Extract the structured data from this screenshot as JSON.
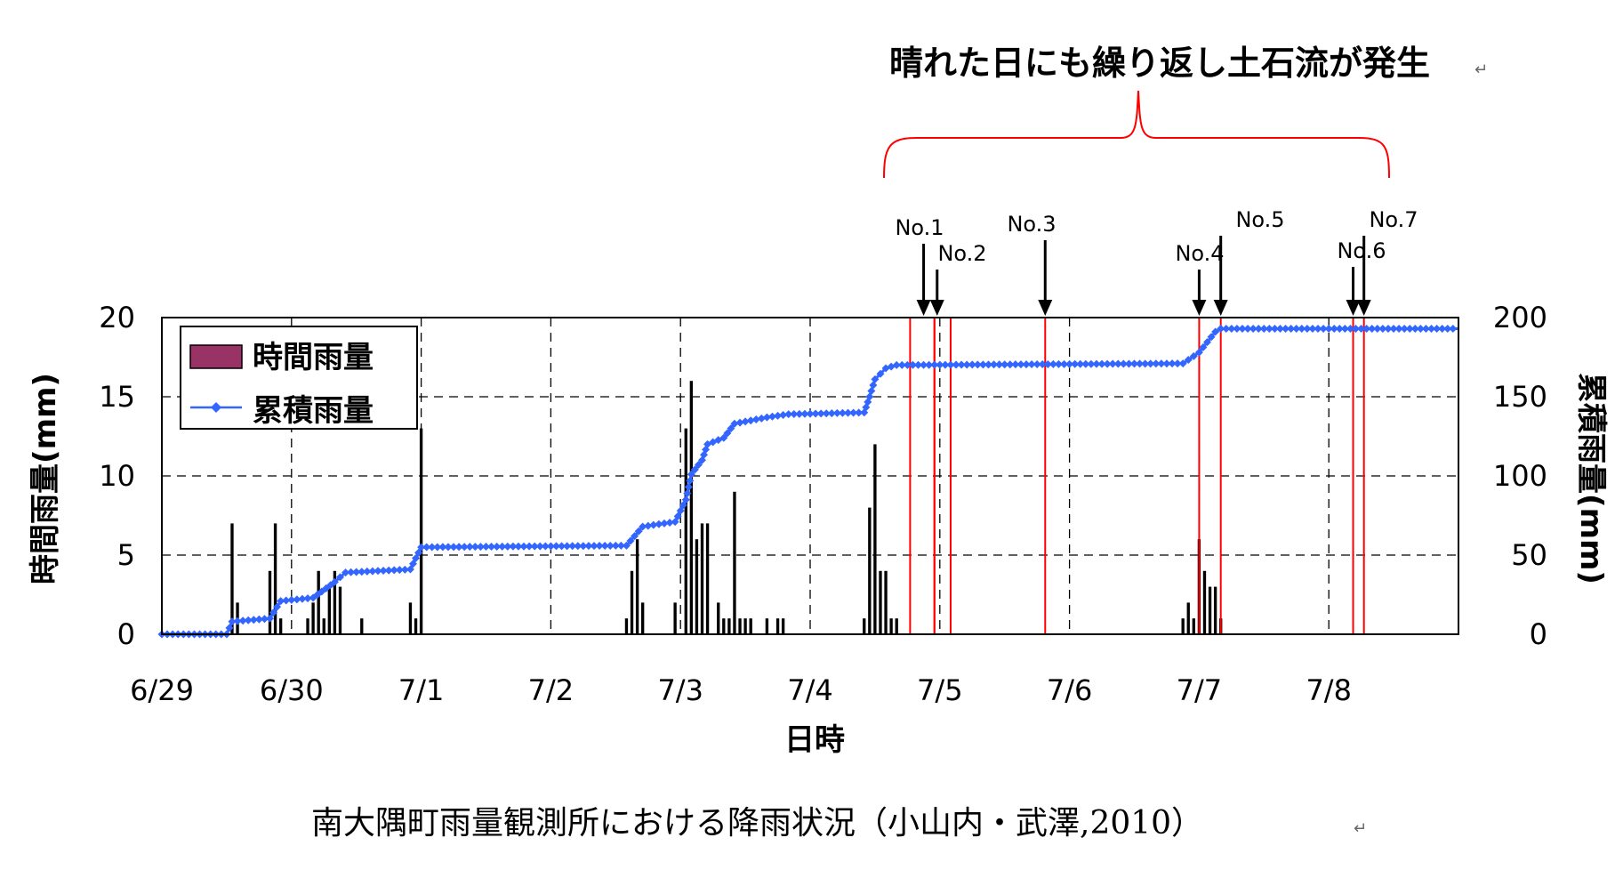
{
  "headline": "晴れた日にも繰り返し土石流が発生",
  "caption": "南大隅町雨量観測所における降雨状況（小山内・武澤,2010）",
  "return_mark": "↵",
  "colors": {
    "bars": "#000000",
    "legend_bar": "#993366",
    "cumulative": "#3366ff",
    "event": "#ff0000",
    "brace": "#ff0000",
    "grid": "#000000"
  },
  "chart_data": {
    "type": "bar+line",
    "xlabel": "日時",
    "ylabel_left": "時間雨量(mm)",
    "ylabel_right": "累積雨量(mm)",
    "ylim_left": [
      0,
      20
    ],
    "ylim_right": [
      0,
      200
    ],
    "yticks_left": [
      "0",
      "5",
      "10",
      "15",
      "20"
    ],
    "yticks_right": [
      "0",
      "50",
      "100",
      "150",
      "200"
    ],
    "xlim_days": [
      0,
      10
    ],
    "x_categories": [
      "6/29",
      "6/30",
      "7/1",
      "7/2",
      "7/3",
      "7/4",
      "7/5",
      "7/6",
      "7/7",
      "7/8"
    ],
    "grid": true,
    "legend_position": "top-left",
    "legend": [
      "時間雨量",
      "累積雨量"
    ],
    "hourly_rainfall": [
      {
        "t": "6/29 13:00",
        "v": 7
      },
      {
        "t": "6/29 14:00",
        "v": 2
      },
      {
        "t": "6/29 20:00",
        "v": 4
      },
      {
        "t": "6/29 21:00",
        "v": 7
      },
      {
        "t": "6/29 22:00",
        "v": 1
      },
      {
        "t": "6/30 03:00",
        "v": 1
      },
      {
        "t": "6/30 04:00",
        "v": 2
      },
      {
        "t": "6/30 05:00",
        "v": 4
      },
      {
        "t": "6/30 06:00",
        "v": 1
      },
      {
        "t": "6/30 07:00",
        "v": 3
      },
      {
        "t": "6/30 08:00",
        "v": 4
      },
      {
        "t": "6/30 09:00",
        "v": 3
      },
      {
        "t": "6/30 13:00",
        "v": 1
      },
      {
        "t": "6/30 22:00",
        "v": 2
      },
      {
        "t": "6/30 23:00",
        "v": 1
      },
      {
        "t": "7/1 00:00",
        "v": 13
      },
      {
        "t": "7/2 14:00",
        "v": 1
      },
      {
        "t": "7/2 15:00",
        "v": 4
      },
      {
        "t": "7/2 16:00",
        "v": 6
      },
      {
        "t": "7/2 17:00",
        "v": 2
      },
      {
        "t": "7/2 23:00",
        "v": 2
      },
      {
        "t": "7/3 01:00",
        "v": 13
      },
      {
        "t": "7/3 02:00",
        "v": 16
      },
      {
        "t": "7/3 03:00",
        "v": 6
      },
      {
        "t": "7/3 04:00",
        "v": 7
      },
      {
        "t": "7/3 05:00",
        "v": 7
      },
      {
        "t": "7/3 07:00",
        "v": 2
      },
      {
        "t": "7/3 08:00",
        "v": 1
      },
      {
        "t": "7/3 09:00",
        "v": 1
      },
      {
        "t": "7/3 10:00",
        "v": 9
      },
      {
        "t": "7/3 11:00",
        "v": 1
      },
      {
        "t": "7/3 12:00",
        "v": 1
      },
      {
        "t": "7/3 13:00",
        "v": 1
      },
      {
        "t": "7/3 16:00",
        "v": 1
      },
      {
        "t": "7/3 18:00",
        "v": 1
      },
      {
        "t": "7/3 19:00",
        "v": 1
      },
      {
        "t": "7/4 10:00",
        "v": 1
      },
      {
        "t": "7/4 11:00",
        "v": 8
      },
      {
        "t": "7/4 12:00",
        "v": 12
      },
      {
        "t": "7/4 13:00",
        "v": 4
      },
      {
        "t": "7/4 14:00",
        "v": 4
      },
      {
        "t": "7/4 15:00",
        "v": 1
      },
      {
        "t": "7/4 16:00",
        "v": 1
      },
      {
        "t": "7/6 21:00",
        "v": 1
      },
      {
        "t": "7/6 22:00",
        "v": 2
      },
      {
        "t": "7/6 23:00",
        "v": 1
      },
      {
        "t": "7/7 00:00",
        "v": 6
      },
      {
        "t": "7/7 01:00",
        "v": 4
      },
      {
        "t": "7/7 02:00",
        "v": 3
      },
      {
        "t": "7/7 03:00",
        "v": 3
      },
      {
        "t": "7/7 04:00",
        "v": 1
      }
    ],
    "cumulative_rainfall": [
      {
        "t": "6/29 00:00",
        "v": 0
      },
      {
        "t": "6/29 12:00",
        "v": 0
      },
      {
        "t": "6/29 13:00",
        "v": 8
      },
      {
        "t": "6/29 20:00",
        "v": 10
      },
      {
        "t": "6/29 22:00",
        "v": 21
      },
      {
        "t": "6/30 04:00",
        "v": 23
      },
      {
        "t": "6/30 08:00",
        "v": 33
      },
      {
        "t": "6/30 10:00",
        "v": 39
      },
      {
        "t": "6/30 22:00",
        "v": 41
      },
      {
        "t": "7/1 00:00",
        "v": 55
      },
      {
        "t": "7/2 14:00",
        "v": 56
      },
      {
        "t": "7/2 17:00",
        "v": 68
      },
      {
        "t": "7/2 23:00",
        "v": 71
      },
      {
        "t": "7/3 01:00",
        "v": 85
      },
      {
        "t": "7/3 02:00",
        "v": 101
      },
      {
        "t": "7/3 04:00",
        "v": 110
      },
      {
        "t": "7/3 05:00",
        "v": 120
      },
      {
        "t": "7/3 08:00",
        "v": 124
      },
      {
        "t": "7/3 10:00",
        "v": 133
      },
      {
        "t": "7/3 16:00",
        "v": 137
      },
      {
        "t": "7/3 20:00",
        "v": 139
      },
      {
        "t": "7/4 10:00",
        "v": 140
      },
      {
        "t": "7/4 11:00",
        "v": 150
      },
      {
        "t": "7/4 12:00",
        "v": 161
      },
      {
        "t": "7/4 14:00",
        "v": 168
      },
      {
        "t": "7/4 16:00",
        "v": 170
      },
      {
        "t": "7/6 21:00",
        "v": 171
      },
      {
        "t": "7/7 00:00",
        "v": 178
      },
      {
        "t": "7/7 03:00",
        "v": 191
      },
      {
        "t": "7/7 04:00",
        "v": 193
      },
      {
        "t": "7/8 23:59",
        "v": 193
      }
    ],
    "events": [
      {
        "label": "No.1",
        "t": "7/4 21:00"
      },
      {
        "label": "No.2",
        "t": "7/4 23:30"
      },
      {
        "label": "No.3",
        "t": "7/5 19:30"
      },
      {
        "label": "No.4",
        "t": "7/7 00:00"
      },
      {
        "label": "No.5",
        "t": "7/7 04:00"
      },
      {
        "label": "No.6",
        "t": "7/8 04:30"
      },
      {
        "label": "No.7",
        "t": "7/8 06:30"
      }
    ],
    "event_windows": [
      {
        "label": "No.1",
        "start": "7/4 18:30",
        "end": "7/4 23:00"
      },
      {
        "label": "No.2",
        "start": "7/4 23:00",
        "end": "7/5 02:00"
      }
    ]
  }
}
